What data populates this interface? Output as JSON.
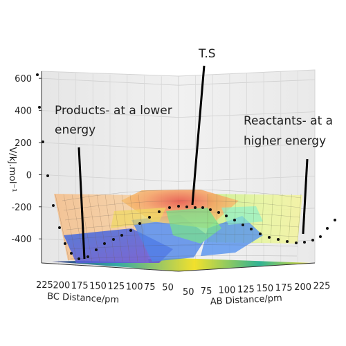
{
  "chart_data": {
    "type": "surface-3d",
    "title": "",
    "zlabel": "V/kJ.mol⁻¹",
    "xlabel": "BC Distance/pm",
    "ylabel": "AB Distance/pm",
    "z_ticks": [
      600,
      400,
      200,
      0,
      -200,
      -400
    ],
    "bc_ticks": [
      225,
      200,
      175,
      150,
      125,
      100,
      75,
      50
    ],
    "ab_ticks": [
      50,
      75,
      100,
      125,
      150,
      175,
      200,
      225
    ],
    "bc_range": [
      50,
      225
    ],
    "ab_range": [
      50,
      225
    ],
    "z_range": [
      -550,
      700
    ],
    "grid": true,
    "colormap": "jet (surface), viridis (floor contour)",
    "annotations": [
      {
        "text": "T.S"
      },
      {
        "text": "Products- at a lower",
        "text2": "energy"
      },
      {
        "text": "Reactants- at a",
        "text2": "higher energy"
      }
    ],
    "trajectory": {
      "description": "reaction path from reactant valley over transition state into product valley",
      "points": [
        [
          230,
          50,
          780
        ],
        [
          225,
          52,
          600
        ],
        [
          220,
          55,
          300
        ],
        [
          215,
          58,
          80
        ],
        [
          210,
          60,
          -150
        ],
        [
          200,
          62,
          -320
        ],
        [
          190,
          63,
          -420
        ],
        [
          180,
          64,
          -480
        ],
        [
          165,
          66,
          -500
        ],
        [
          150,
          70,
          -490
        ],
        [
          135,
          78,
          -460
        ],
        [
          122,
          88,
          -420
        ],
        [
          112,
          100,
          -380
        ],
        [
          104,
          112,
          -330
        ],
        [
          98,
          122,
          -280
        ],
        [
          95,
          130,
          -250
        ],
        [
          92,
          140,
          -225
        ],
        [
          90,
          150,
          -215
        ],
        [
          88,
          160,
          -230
        ],
        [
          85,
          172,
          -260
        ],
        [
          82,
          185,
          -300
        ],
        [
          78,
          198,
          -340
        ],
        [
          74,
          210,
          -380
        ],
        [
          70,
          220,
          -410
        ],
        [
          66,
          228,
          -420
        ],
        [
          62,
          235,
          -400
        ],
        [
          58,
          240,
          -350
        ],
        [
          55,
          244,
          -280
        ]
      ]
    }
  }
}
